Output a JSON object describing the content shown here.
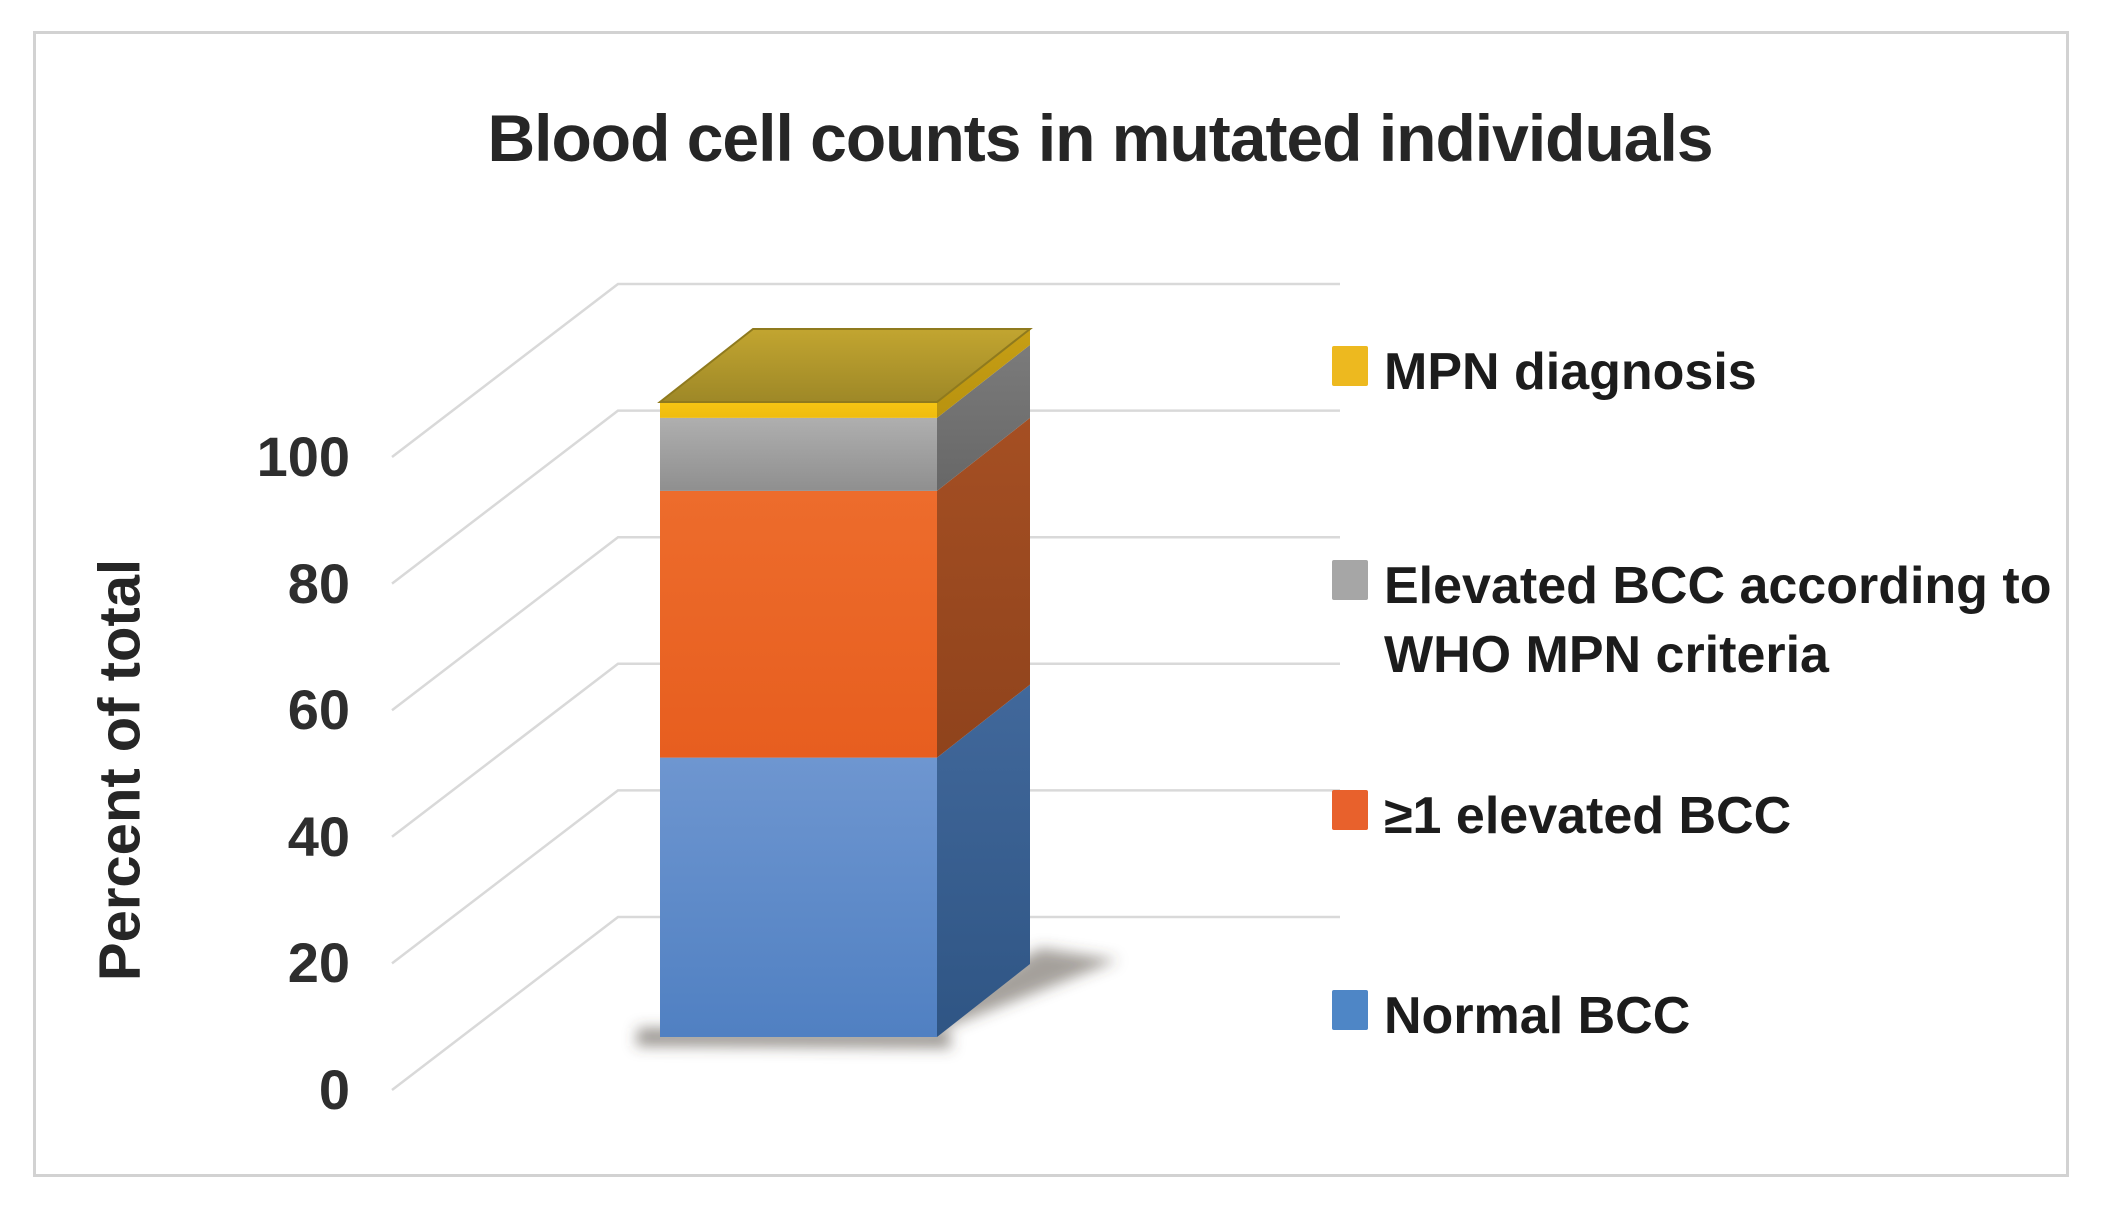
{
  "title": "Blood cell counts in mutated individuals",
  "y_axis": {
    "label": "Percent of total",
    "ticks": [
      "0",
      "20",
      "40",
      "60",
      "80",
      "100"
    ]
  },
  "legend": {
    "items": [
      {
        "label": "MPN diagnosis",
        "color": "#EDB91F"
      },
      {
        "label": "Elevated BCC according to WHO MPN criteria",
        "color": "#A6A6A6"
      },
      {
        "label": "≥1 elevated BCC",
        "color": "#E8612C"
      },
      {
        "label": "Normal BCC",
        "color": "#4E86C6"
      }
    ]
  },
  "chart_data": {
    "type": "bar",
    "stacked": true,
    "effect": "3d-column",
    "categories": [
      ""
    ],
    "series": [
      {
        "name": "Normal BCC",
        "color": "#4E86C6",
        "values": [
          44
        ]
      },
      {
        "name": "≥1 elevated BCC",
        "color": "#E8612C",
        "values": [
          42
        ]
      },
      {
        "name": "Elevated BCC according to WHO MPN criteria",
        "color": "#A6A6A6",
        "values": [
          11.5
        ]
      },
      {
        "name": "MPN diagnosis",
        "color": "#EDB91F",
        "values": [
          2.5
        ]
      }
    ],
    "title": "Blood cell counts in mutated individuals",
    "xlabel": "",
    "ylabel": "Percent of total",
    "ylim": [
      0,
      100
    ],
    "yticks": [
      0,
      20,
      40,
      60,
      80,
      100
    ],
    "grid": true,
    "legend_position": "right",
    "values_note": "percentages estimated from pixel measurements; stack sums to 100"
  }
}
